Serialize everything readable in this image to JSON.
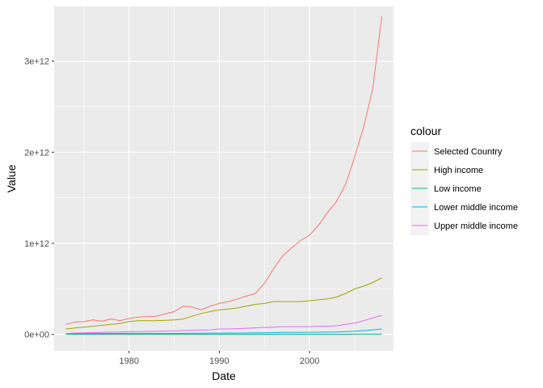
{
  "chart_data": {
    "type": "line",
    "title": "",
    "xlabel": "Date",
    "ylabel": "Value",
    "xlim": [
      1971.7,
      2009.3
    ],
    "ylim": [
      -180000000000.0,
      3600000000000.0
    ],
    "x_ticks": [
      1980,
      1990,
      2000
    ],
    "x_tick_labels": [
      "1980",
      "1990",
      "2000"
    ],
    "y_ticks": [
      0,
      1000000000000.0,
      2000000000000.0,
      3000000000000.0
    ],
    "y_tick_labels": [
      "0e+00",
      "1e+12",
      "2e+12",
      "3e+12"
    ],
    "grid": true,
    "legend_title": "colour",
    "legend_position": "right",
    "x": [
      1973,
      1974,
      1975,
      1976,
      1977,
      1978,
      1979,
      1980,
      1981,
      1982,
      1983,
      1984,
      1985,
      1986,
      1987,
      1988,
      1989,
      1990,
      1991,
      1992,
      1993,
      1994,
      1995,
      1996,
      1997,
      1998,
      1999,
      2000,
      2001,
      2002,
      2003,
      2004,
      2005,
      2006,
      2007,
      2008
    ],
    "series": [
      {
        "name": " Selected Country",
        "color": "#F8766D",
        "values": [
          110000000000.0,
          135000000000.0,
          140000000000.0,
          160000000000.0,
          145000000000.0,
          170000000000.0,
          150000000000.0,
          175000000000.0,
          190000000000.0,
          195000000000.0,
          200000000000.0,
          225000000000.0,
          250000000000.0,
          310000000000.0,
          300000000000.0,
          270000000000.0,
          310000000000.0,
          340000000000.0,
          360000000000.0,
          390000000000.0,
          420000000000.0,
          450000000000.0,
          560000000000.0,
          720000000000.0,
          860000000000.0,
          950000000000.0,
          1030000000000.0,
          1090000000000.0,
          1200000000000.0,
          1340000000000.0,
          1460000000000.0,
          1650000000000.0,
          1950000000000.0,
          2280000000000.0,
          2700000000000.0,
          3490000000000.0
        ]
      },
      {
        "name": "High income",
        "color": "#A3A500",
        "values": [
          60000000000.0,
          70000000000.0,
          80000000000.0,
          90000000000.0,
          100000000000.0,
          110000000000.0,
          120000000000.0,
          140000000000.0,
          150000000000.0,
          150000000000.0,
          150000000000.0,
          155000000000.0,
          160000000000.0,
          170000000000.0,
          200000000000.0,
          230000000000.0,
          250000000000.0,
          270000000000.0,
          280000000000.0,
          290000000000.0,
          310000000000.0,
          330000000000.0,
          340000000000.0,
          360000000000.0,
          360000000000.0,
          360000000000.0,
          360000000000.0,
          370000000000.0,
          380000000000.0,
          390000000000.0,
          410000000000.0,
          450000000000.0,
          500000000000.0,
          530000000000.0,
          570000000000.0,
          620000000000.0
        ]
      },
      {
        "name": "Low income",
        "color": "#00BF7D",
        "values": [
          2000000000.0,
          2000000000.0,
          2000000000.0,
          2000000000.0,
          2000000000.0,
          2000000000.0,
          2000000000.0,
          2000000000.0,
          2000000000.0,
          2000000000.0,
          2000000000.0,
          2000000000.0,
          2000000000.0,
          2000000000.0,
          2000000000.0,
          2000000000.0,
          2000000000.0,
          2000000000.0,
          2000000000.0,
          2000000000.0,
          2000000000.0,
          2000000000.0,
          2000000000.0,
          2000000000.0,
          2000000000.0,
          2000000000.0,
          2000000000.0,
          2000000000.0,
          2000000000.0,
          2000000000.0,
          2000000000.0,
          2000000000.0,
          3000000000.0,
          3000000000.0,
          3000000000.0,
          3000000000.0
        ]
      },
      {
        "name": "Lower middle income",
        "color": "#00B0F6",
        "values": [
          10000000000.0,
          10000000000.0,
          10000000000.0,
          10000000000.0,
          10000000000.0,
          11000000000.0,
          11000000000.0,
          12000000000.0,
          12000000000.0,
          12000000000.0,
          12000000000.0,
          12000000000.0,
          12000000000.0,
          12000000000.0,
          13000000000.0,
          13000000000.0,
          14000000000.0,
          14000000000.0,
          15000000000.0,
          15000000000.0,
          16000000000.0,
          17000000000.0,
          18000000000.0,
          20000000000.0,
          21000000000.0,
          21000000000.0,
          22000000000.0,
          23000000000.0,
          24000000000.0,
          25000000000.0,
          27000000000.0,
          30000000000.0,
          35000000000.0,
          42000000000.0,
          50000000000.0,
          60000000000.0
        ]
      },
      {
        "name": "Upper middle income",
        "color": "#E76BF3",
        "values": [
          10000000000.0,
          15000000000.0,
          18000000000.0,
          20000000000.0,
          22000000000.0,
          25000000000.0,
          28000000000.0,
          30000000000.0,
          32000000000.0,
          33000000000.0,
          36000000000.0,
          38000000000.0,
          40000000000.0,
          43000000000.0,
          46000000000.0,
          48000000000.0,
          50000000000.0,
          60000000000.0,
          60000000000.0,
          63000000000.0,
          68000000000.0,
          72000000000.0,
          76000000000.0,
          80000000000.0,
          85000000000.0,
          85000000000.0,
          85000000000.0,
          85000000000.0,
          90000000000.0,
          90000000000.0,
          95000000000.0,
          110000000000.0,
          125000000000.0,
          150000000000.0,
          180000000000.0,
          210000000000.0
        ]
      }
    ]
  }
}
